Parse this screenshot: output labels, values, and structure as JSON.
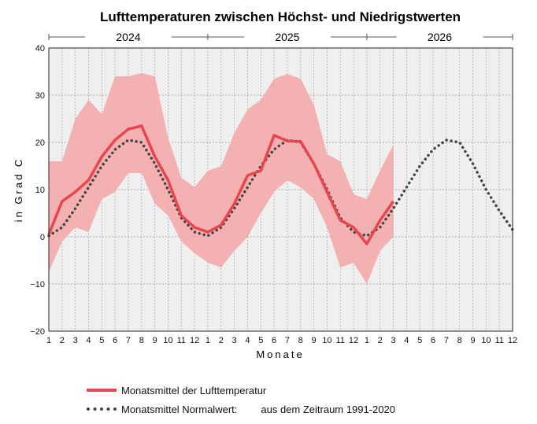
{
  "chart_data": {
    "type": "line",
    "title": "Lufttemperaturen zwischen Höchst- und Niedrigstwerten",
    "xlabel": "Monate",
    "ylabel": "in Grad C",
    "ylim": [
      -20,
      40
    ],
    "yticks": [
      -20,
      -10,
      0,
      10,
      20,
      30,
      40
    ],
    "xlim": [
      0,
      35
    ],
    "x_tick_labels": [
      "1",
      "2",
      "3",
      "4",
      "5",
      "6",
      "7",
      "8",
      "9",
      "10",
      "11",
      "12",
      "1",
      "2",
      "3",
      "4",
      "5",
      "6",
      "7",
      "8",
      "9",
      "10",
      "11",
      "12",
      "1",
      "2",
      "3",
      "4",
      "5",
      "6",
      "7",
      "8",
      "9",
      "10",
      "11",
      "12"
    ],
    "years": [
      {
        "label": "2024",
        "start": 0,
        "end": 12
      },
      {
        "label": "2025",
        "start": 12,
        "end": 24
      },
      {
        "label": "2026",
        "start": 24,
        "end": 35
      }
    ],
    "grid": true,
    "legend_position": "bottom-left",
    "series": [
      {
        "name": "Monatsmittel der Lufttemperatur",
        "style": "solid",
        "color": "#e8454e",
        "x": [
          0,
          1,
          2,
          3,
          4,
          5,
          6,
          7,
          8,
          9,
          10,
          11,
          12,
          13,
          14,
          15,
          16,
          17,
          18,
          19,
          20,
          21,
          22,
          23,
          24,
          25,
          26
        ],
        "values": [
          0.5,
          7.5,
          9.5,
          12,
          17,
          20.5,
          22.8,
          23.5,
          17,
          12,
          4.5,
          2,
          1,
          2.5,
          7,
          13,
          14,
          21.5,
          20.3,
          20.2,
          15.5,
          9.5,
          3.5,
          2,
          -1.5,
          3.5,
          7.5
        ]
      },
      {
        "name": "Monatsmittel Normalwert:",
        "style": "dotted",
        "color": "#444444",
        "x": [
          0,
          1,
          2,
          3,
          4,
          5,
          6,
          7,
          8,
          9,
          10,
          11,
          12,
          13,
          14,
          15,
          16,
          17,
          18,
          19,
          20,
          21,
          22,
          23,
          24,
          25,
          26,
          27,
          28,
          29,
          30,
          31,
          32,
          33,
          34,
          35
        ],
        "values": [
          0.2,
          2,
          6,
          10.5,
          15,
          18.5,
          20.5,
          20,
          15.5,
          10,
          4,
          1,
          0.2,
          2,
          6,
          10.5,
          15,
          18.5,
          20.5,
          20,
          15.5,
          10,
          4,
          1,
          0.2,
          2,
          6,
          10.5,
          15,
          18.5,
          20.5,
          20,
          15.5,
          10,
          5.5,
          1.5
        ]
      }
    ],
    "range_band": {
      "color": "#f4a6a6",
      "x": [
        0,
        1,
        2,
        3,
        4,
        5,
        6,
        7,
        8,
        9,
        10,
        11,
        12,
        13,
        14,
        15,
        16,
        17,
        18,
        19,
        20,
        21,
        22,
        23,
        24,
        25,
        26
      ],
      "upper": [
        16,
        16,
        25,
        29,
        26,
        34,
        34,
        34.7,
        34,
        21,
        12.5,
        10.5,
        14,
        15,
        22,
        27,
        29,
        33.5,
        34.5,
        33.5,
        28,
        17.5,
        16,
        9,
        8,
        14,
        19.5
      ],
      "lower": [
        -7.5,
        -1,
        2,
        1,
        8,
        9.5,
        13.5,
        13.5,
        7,
        4.5,
        -1,
        -3.5,
        -5.5,
        -6.5,
        -3,
        0,
        5,
        9.5,
        12,
        10.5,
        8,
        2,
        -6.5,
        -5.5,
        -10,
        -3,
        0
      ]
    },
    "legend_note": "aus dem Zeitraum 1991-2020"
  }
}
